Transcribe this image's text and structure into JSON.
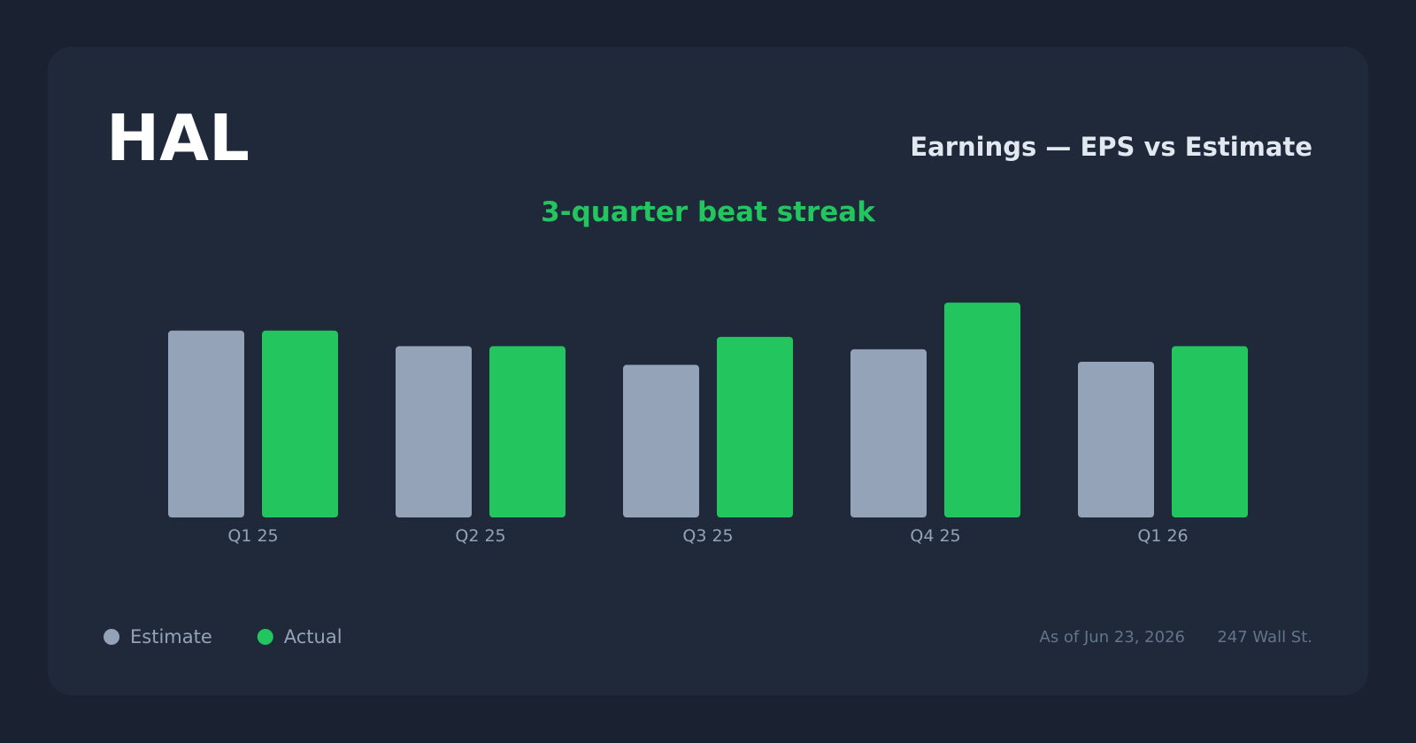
{
  "chart_data": {
    "type": "bar",
    "ticker": "HAL",
    "title": "Earnings — EPS vs Estimate",
    "annotation": "3-quarter beat streak",
    "categories": [
      "Q1 25",
      "Q2 25",
      "Q3 25",
      "Q4 25",
      "Q1 26"
    ],
    "series": [
      {
        "name": "Estimate",
        "color": "#94a3b8",
        "values": [
          0.6,
          0.55,
          0.49,
          0.54,
          0.5
        ]
      },
      {
        "name": "Actual",
        "color": "#22c55e",
        "values": [
          0.6,
          0.55,
          0.58,
          0.69,
          0.55
        ]
      }
    ],
    "ylim": [
      0,
      0.75
    ],
    "as_of": "As of Jun 23, 2026",
    "source": "247 Wall St."
  }
}
